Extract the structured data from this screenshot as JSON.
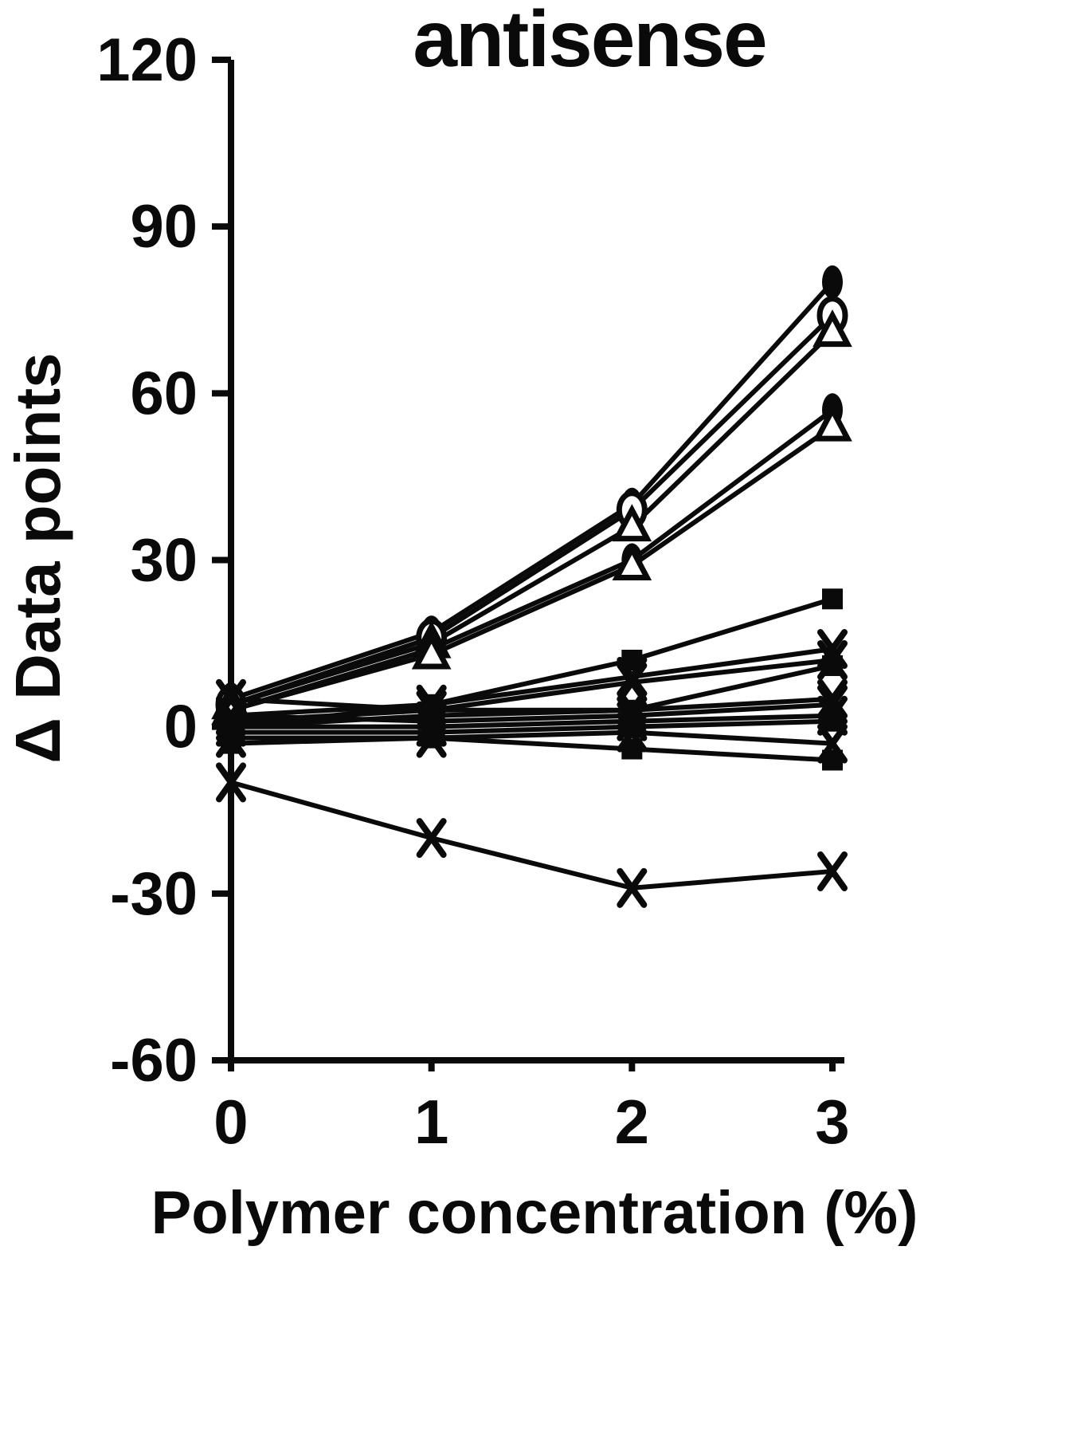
{
  "chart": {
    "title": "antisense",
    "ylabel": "Δ Data points",
    "xlabel": "Polymer concentration (%)"
  },
  "chart_data": {
    "type": "line",
    "title": "antisense",
    "xlabel": "Polymer concentration (%)",
    "ylabel": "Δ Data points",
    "x": [
      0,
      1,
      2,
      3
    ],
    "xlim": [
      0,
      3
    ],
    "ylim": [
      -60,
      120
    ],
    "xticks": [
      0,
      1,
      2,
      3
    ],
    "yticks": [
      -60,
      -30,
      0,
      30,
      60,
      90,
      120
    ],
    "grid": false,
    "legend": "none",
    "line_color": "#0a0a0a",
    "series": [
      {
        "name": "filled-ellipse-top",
        "marker": "filled-ellipse",
        "values": [
          5,
          17,
          40,
          80
        ]
      },
      {
        "name": "open-circle",
        "marker": "open-circle",
        "values": [
          4,
          16,
          39,
          74
        ]
      },
      {
        "name": "open-triangle-top",
        "marker": "open-triangle",
        "values": [
          4,
          15,
          36,
          71
        ]
      },
      {
        "name": "filled-ellipse-mid",
        "marker": "filled-ellipse",
        "values": [
          3,
          14,
          30,
          57
        ]
      },
      {
        "name": "open-triangle-mid",
        "marker": "open-triangle",
        "values": [
          3,
          13,
          29,
          54
        ]
      },
      {
        "name": "filled-square-rising",
        "marker": "filled-square",
        "values": [
          0,
          4,
          12,
          23
        ]
      },
      {
        "name": "x-rising-1",
        "marker": "x",
        "values": [
          2,
          4,
          9,
          14
        ]
      },
      {
        "name": "x-rising-2",
        "marker": "x",
        "values": [
          1,
          3,
          8,
          12
        ]
      },
      {
        "name": "filled-square-low",
        "marker": "filled-square",
        "values": [
          0,
          2,
          3,
          11
        ]
      },
      {
        "name": "x-flat-1",
        "marker": "x",
        "values": [
          5,
          3,
          3,
          5
        ]
      },
      {
        "name": "x-flat-2",
        "marker": "x",
        "values": [
          2,
          1,
          2,
          4
        ]
      },
      {
        "name": "x-flat-3",
        "marker": "x",
        "values": [
          0,
          0,
          1,
          2
        ]
      },
      {
        "name": "filled-square-flat",
        "marker": "filled-square",
        "values": [
          -1,
          -1,
          0,
          1
        ]
      },
      {
        "name": "x-flat-4",
        "marker": "x",
        "values": [
          -2,
          -2,
          -1,
          -3
        ]
      },
      {
        "name": "filled-square-declining",
        "marker": "filled-square",
        "values": [
          -3,
          -2,
          -4,
          -6
        ]
      },
      {
        "name": "x-declining",
        "marker": "x",
        "values": [
          -10,
          -20,
          -29,
          -26
        ]
      }
    ]
  }
}
